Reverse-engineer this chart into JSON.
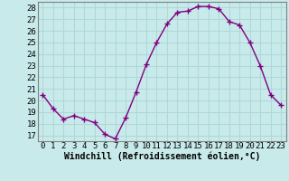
{
  "x": [
    0,
    1,
    2,
    3,
    4,
    5,
    6,
    7,
    8,
    9,
    10,
    11,
    12,
    13,
    14,
    15,
    16,
    17,
    18,
    19,
    20,
    21,
    22,
    23
  ],
  "y": [
    20.5,
    19.3,
    18.4,
    18.7,
    18.4,
    18.1,
    17.1,
    16.7,
    18.5,
    20.7,
    23.1,
    25.0,
    26.6,
    27.6,
    27.7,
    28.1,
    28.1,
    27.9,
    26.8,
    26.5,
    25.0,
    23.0,
    20.5,
    19.6
  ],
  "line_color": "#800080",
  "marker": "+",
  "marker_size": 4,
  "bg_color": "#c8eaea",
  "grid_color": "#b0d8d8",
  "xlabel": "Windchill (Refroidissement éolien,°C)",
  "xlim": [
    -0.5,
    23.5
  ],
  "ylim": [
    16.5,
    28.5
  ],
  "yticks": [
    17,
    18,
    19,
    20,
    21,
    22,
    23,
    24,
    25,
    26,
    27,
    28
  ],
  "xticks": [
    0,
    1,
    2,
    3,
    4,
    5,
    6,
    7,
    8,
    9,
    10,
    11,
    12,
    13,
    14,
    15,
    16,
    17,
    18,
    19,
    20,
    21,
    22,
    23
  ],
  "xlabel_fontsize": 7,
  "tick_fontsize": 6.5,
  "line_width": 1.0,
  "spine_color": "#808080"
}
